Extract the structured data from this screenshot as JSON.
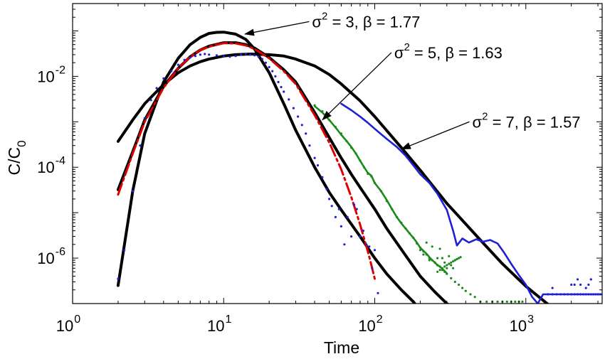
{
  "chart_data": {
    "type": "line",
    "xlabel": "Time",
    "ylabel": "C/C",
    "ylabel_sub": "0",
    "xscale": "log",
    "yscale": "log",
    "xlim": [
      1,
      3200
    ],
    "ylim": [
      1e-07,
      0.4
    ],
    "grid": false,
    "x_ticks": [
      {
        "value": 1,
        "base": "10",
        "exp": "0"
      },
      {
        "value": 10,
        "base": "10",
        "exp": "1"
      },
      {
        "value": 100,
        "base": "10",
        "exp": "2"
      },
      {
        "value": 1000,
        "base": "10",
        "exp": "3"
      }
    ],
    "y_ticks": [
      {
        "value": 0.01,
        "base": "10",
        "exp": "-2"
      },
      {
        "value": 0.0001,
        "base": "10",
        "exp": "-4"
      },
      {
        "value": 1e-06,
        "base": "10",
        "exp": "-6"
      }
    ],
    "annotations": [
      {
        "line1": "σ",
        "sup": "2",
        "line2": " = 3, β = 1.77",
        "text_x": 200,
        "text_y": 0.12,
        "arrow_to_x": 13.8,
        "arrow_to_y": 0.085
      },
      {
        "line1": "σ",
        "sup": "2",
        "line2": " = 5, β = 1.63",
        "text_x": 700,
        "text_y": 0.025,
        "arrow_to_x": 45,
        "arrow_to_y": 0.0011
      },
      {
        "line1": "σ",
        "sup": "2",
        "line2": " = 7, β = 1.57",
        "text_x": 2300,
        "text_y": 0.00075,
        "arrow_to_x": 150,
        "arrow_to_y": 0.00025
      }
    ],
    "series": [
      {
        "style": "solid",
        "color": "#000000",
        "x": [
          2,
          2.5,
          3,
          4,
          5,
          6,
          7,
          8,
          9,
          10,
          12,
          14,
          16,
          20,
          25,
          30,
          40,
          50,
          60,
          80,
          100,
          120,
          150,
          180,
          200
        ],
        "y": [
          2.5e-07,
          3e-05,
          0.00055,
          0.0075,
          0.025,
          0.05,
          0.072,
          0.088,
          0.093,
          0.094,
          0.085,
          0.065,
          0.04,
          0.012,
          0.0025,
          0.00065,
          0.0001,
          2.8e-05,
          1.15e-05,
          3e-06,
          1e-06,
          4.5e-07,
          2e-07,
          1.1e-07,
          7e-08
        ]
      },
      {
        "style": "solid",
        "color": "#000000",
        "x": [
          2,
          2.5,
          3,
          4,
          5,
          6,
          7,
          8,
          10,
          12,
          14,
          16,
          20,
          25,
          30,
          40,
          50,
          60,
          70,
          80,
          100,
          120,
          150,
          200,
          250,
          300,
          400
        ],
        "y": [
          3.2e-05,
          0.00022,
          0.0011,
          0.006,
          0.015,
          0.027,
          0.038,
          0.046,
          0.055,
          0.055,
          0.05,
          0.042,
          0.026,
          0.014,
          0.0075,
          0.0016,
          0.00045,
          0.00016,
          7e-05,
          3.6e-05,
          1.2e-05,
          4.5e-06,
          1.55e-06,
          4e-07,
          1.8e-07,
          1e-07,
          5e-08
        ]
      },
      {
        "style": "solid",
        "color": "#000000",
        "x": [
          2,
          2.5,
          3,
          4,
          5,
          6,
          7,
          8,
          10,
          12,
          15,
          20,
          25,
          30,
          40,
          50,
          60,
          80,
          100,
          150,
          200,
          300,
          500,
          700,
          1000,
          1500,
          2000
        ],
        "y": [
          0.00037,
          0.0011,
          0.0025,
          0.0066,
          0.012,
          0.017,
          0.021,
          0.024,
          0.028,
          0.03,
          0.031,
          0.03,
          0.028,
          0.024,
          0.017,
          0.011,
          0.0068,
          0.0029,
          0.0013,
          0.00027,
          8.6e-05,
          1.6e-05,
          2.5e-06,
          7.5e-07,
          2.4e-07,
          8e-08,
          4e-08
        ]
      },
      {
        "style": "dashdot",
        "color": "#e00000",
        "x": [
          2,
          2.5,
          3,
          4,
          5,
          6,
          7,
          8,
          10,
          12,
          14,
          16,
          20,
          25,
          30,
          40,
          50,
          60,
          70,
          80,
          90,
          95,
          100
        ],
        "y": [
          2.5e-05,
          0.0002,
          0.001,
          0.0056,
          0.015,
          0.027,
          0.038,
          0.045,
          0.054,
          0.053,
          0.048,
          0.04,
          0.025,
          0.013,
          0.0068,
          0.0014,
          0.00035,
          9e-05,
          2.2e-05,
          5.5e-06,
          1.4e-06,
          7e-07,
          3.5e-07
        ]
      },
      {
        "style": "solid",
        "color": "#1f1fd6",
        "x": [
          60,
          70,
          80,
          90,
          100,
          120,
          140,
          160,
          180,
          200,
          230,
          260,
          300,
          330,
          350,
          380,
          420,
          470,
          520,
          580,
          650,
          720,
          800,
          900,
          1000,
          1100,
          1200,
          1300,
          1400,
          1600,
          2000,
          2500,
          3200
        ],
        "y": [
          0.0025,
          0.0018,
          0.0013,
          0.00095,
          0.0007,
          0.00042,
          0.00028,
          0.00018,
          0.00011,
          7e-05,
          4.5e-05,
          2.6e-05,
          1.15e-05,
          4e-06,
          1.9e-06,
          2.7e-06,
          2.2e-06,
          2.6e-06,
          2.3e-06,
          2.5e-06,
          2.1e-06,
          1.3e-06,
          7.5e-07,
          4.2e-07,
          2.6e-07,
          1.4e-07,
          1e-07,
          1.6e-07,
          1.6e-07,
          1.6e-07,
          1.6e-07,
          1.6e-07,
          1.6e-07
        ]
      },
      {
        "style": "dots",
        "color": "#1f1fd6",
        "x": [
          2,
          2.2,
          2.5,
          2.8,
          3,
          3.3,
          3.6,
          4,
          4.5,
          5,
          5.5,
          6,
          6.5,
          7,
          7.5,
          8,
          9,
          10,
          11,
          12,
          13,
          14,
          15,
          16,
          17,
          18,
          19,
          20,
          21,
          22,
          23,
          24,
          25,
          27,
          29,
          31,
          33,
          35,
          37,
          40,
          42,
          45,
          48,
          50,
          52,
          55,
          58,
          60,
          63,
          66,
          70,
          73,
          76,
          80,
          84,
          88,
          92,
          96,
          100,
          105,
          1400,
          1500,
          1600,
          1700,
          1800,
          1900,
          2000,
          2100,
          2200,
          2300,
          2400,
          2500,
          2600,
          2700,
          2800,
          2900,
          3000,
          3100,
          2000,
          2100,
          2200,
          2300,
          2500,
          2600,
          2700,
          1500
        ],
        "y": [
          3.5e-07,
          1.5e-06,
          3e-05,
          0.0003,
          0.0012,
          0.003,
          0.0055,
          0.009,
          0.013,
          0.018,
          0.023,
          0.026,
          0.028,
          0.03,
          0.031,
          0.03,
          0.029,
          0.028,
          0.027,
          0.028,
          0.03,
          0.031,
          0.03,
          0.029,
          0.027,
          0.024,
          0.02,
          0.016,
          0.013,
          0.01,
          0.0075,
          0.0058,
          0.0046,
          0.0031,
          0.002,
          0.0013,
          0.00085,
          0.00055,
          0.0003,
          0.00016,
          0.00011,
          6e-05,
          3.3e-05,
          2e-05,
          1.4e-05,
          8e-06,
          1.2e-05,
          5e-06,
          2e-06,
          8e-06,
          3e-06,
          1.5e-05,
          1.2e-05,
          3e-06,
          4e-06,
          2e-06,
          1.8e-06,
          6e-07,
          1.5e-06,
          1.7e-07,
          1.6e-07,
          1.6e-07,
          1.6e-07,
          1.6e-07,
          1.6e-07,
          1.6e-07,
          1.6e-07,
          1.6e-07,
          1.6e-07,
          1.6e-07,
          1.6e-07,
          1.6e-07,
          1.6e-07,
          1.6e-07,
          1.6e-07,
          1.6e-07,
          1.6e-07,
          1.6e-07,
          2.6e-07,
          2.6e-07,
          3.4e-07,
          2.6e-07,
          2.2e-07,
          2.6e-07,
          3.4e-07,
          2.2e-07
        ]
      },
      {
        "style": "dots",
        "color": "#1a8a1a",
        "x": [
          40,
          45,
          50,
          55,
          60,
          65,
          70,
          75,
          80,
          85,
          90,
          95,
          100,
          110,
          120,
          130,
          140,
          150,
          160,
          170,
          180,
          190,
          200,
          210,
          220,
          230,
          240,
          250,
          260,
          270,
          280,
          290,
          300,
          320,
          340,
          360,
          380,
          400,
          430,
          460,
          500,
          550,
          600,
          650,
          700,
          750,
          800,
          850,
          900,
          950,
          200,
          210,
          220,
          230,
          240,
          250,
          260,
          270,
          280,
          290,
          300,
          310,
          320,
          330,
          340,
          260,
          270,
          280,
          290,
          300,
          310,
          320,
          330,
          340,
          350,
          360,
          370
        ],
        "y": [
          0.0023,
          0.0017,
          0.0011,
          0.00077,
          0.00055,
          0.00038,
          0.00027,
          0.0002,
          0.00014,
          0.0001,
          7.2e-05,
          6.3e-05,
          4.5e-05,
          3e-05,
          1.8e-05,
          1.2e-05,
          8e-06,
          6e-06,
          4.5e-06,
          3.5e-06,
          2.8e-06,
          2.1e-06,
          1.7e-06,
          1.4e-06,
          1.2e-06,
          1e-06,
          9e-07,
          8e-07,
          7e-07,
          6.5e-07,
          5.5e-07,
          5e-07,
          4.5e-07,
          3.6e-07,
          3e-07,
          2.6e-07,
          2.2e-07,
          1.9e-07,
          1.6e-07,
          1.4e-07,
          1.1e-07,
          1.1e-07,
          1.1e-07,
          1.1e-07,
          1.1e-07,
          1.1e-07,
          1.1e-07,
          1.1e-07,
          1.1e-07,
          1.1e-07,
          1.5e-06,
          1.2e-06,
          2.2e-06,
          9e-07,
          1.8e-06,
          8e-07,
          1e-06,
          1.6e-06,
          1e-06,
          8e-07,
          6e-07,
          1.1e-06,
          7e-07,
          6e-07,
          9e-07,
          5e-07,
          5.5e-07,
          6e-07,
          6.5e-07,
          7e-07,
          7.5e-07,
          8e-07,
          8.5e-07,
          9e-07,
          9.5e-07,
          1e-06,
          1.05e-06
        ]
      },
      {
        "style": "solid",
        "color": "#1a8a1a",
        "x": [
          40,
          45,
          50,
          55,
          60,
          65,
          70,
          75,
          80,
          85,
          90,
          95,
          100,
          110,
          120,
          130,
          140,
          150,
          160,
          170,
          180,
          190,
          200,
          210,
          220,
          230,
          240,
          250,
          260,
          270,
          280,
          290,
          300
        ],
        "y": [
          0.0022,
          0.0016,
          0.0011,
          0.00075,
          0.00052,
          0.00038,
          0.00028,
          0.0002,
          0.00014,
          0.0001,
          7.5e-05,
          6.5e-05,
          4.5e-05,
          3e-05,
          1.9e-05,
          1.2e-05,
          8e-06,
          5.8e-06,
          4.5e-06,
          3.5e-06,
          2.8e-06,
          2.2e-06,
          1.7e-06,
          1.45e-06,
          1.25e-06,
          1.05e-06,
          9e-07,
          8e-07,
          7e-07,
          6.5e-07,
          5.8e-07,
          5.2e-07,
          4.6e-07
        ]
      }
    ]
  }
}
